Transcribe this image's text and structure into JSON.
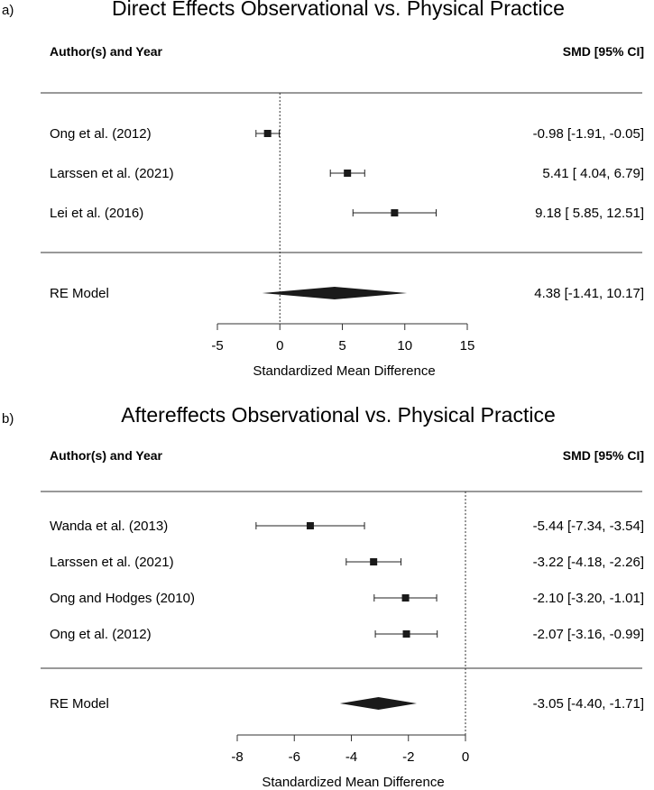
{
  "chart_data": [
    {
      "type": "forest",
      "panel_label": "a)",
      "title": "Direct Effects Observational vs. Physical Practice",
      "header_left": "Author(s) and Year",
      "header_right": "SMD [95% CI]",
      "xlabel": "Standardized Mean Difference",
      "xlim": [
        -5,
        15
      ],
      "ticks": [
        -5,
        0,
        5,
        10,
        15
      ],
      "tick_labels": [
        "-5",
        "0",
        "5",
        "10",
        "15"
      ],
      "reference_line": 0,
      "studies": [
        {
          "label": "Ong et al. (2012)",
          "est": -0.98,
          "lo": -1.91,
          "hi": -0.05,
          "ci_text": "-0.98 [-1.91, -0.05]"
        },
        {
          "label": "Larssen et al. (2021)",
          "est": 5.41,
          "lo": 4.04,
          "hi": 6.79,
          "ci_text": "5.41 [ 4.04,  6.79]"
        },
        {
          "label": "Lei et al. (2016)",
          "est": 9.18,
          "lo": 5.85,
          "hi": 12.51,
          "ci_text": "9.18 [ 5.85, 12.51]"
        }
      ],
      "summary": {
        "label": "RE Model",
        "est": 4.38,
        "lo": -1.41,
        "hi": 10.17,
        "ci_text": "4.38 [-1.41, 10.17]"
      }
    },
    {
      "type": "forest",
      "panel_label": "b)",
      "title": "Aftereffects Observational vs. Physical Practice",
      "header_left": "Author(s) and Year",
      "header_right": "SMD [95% CI]",
      "xlabel": "Standardized Mean Difference",
      "xlim": [
        -8,
        0
      ],
      "ticks": [
        -8,
        -6,
        -4,
        -2,
        0
      ],
      "tick_labels": [
        "-8",
        "-6",
        "-4",
        "-2",
        "0"
      ],
      "reference_line": 0,
      "studies": [
        {
          "label": "Wanda et al. (2013)",
          "est": -5.44,
          "lo": -7.34,
          "hi": -3.54,
          "ci_text": "-5.44 [-7.34, -3.54]"
        },
        {
          "label": "Larssen et al. (2021)",
          "est": -3.22,
          "lo": -4.18,
          "hi": -2.26,
          "ci_text": "-3.22 [-4.18, -2.26]"
        },
        {
          "label": "Ong and Hodges (2010)",
          "est": -2.1,
          "lo": -3.2,
          "hi": -1.01,
          "ci_text": "-2.10 [-3.20, -1.01]"
        },
        {
          "label": "Ong et al. (2012)",
          "est": -2.07,
          "lo": -3.16,
          "hi": -0.99,
          "ci_text": "-2.07 [-3.16, -0.99]"
        }
      ],
      "summary": {
        "label": "RE Model",
        "est": -3.05,
        "lo": -4.4,
        "hi": -1.71,
        "ci_text": "-3.05 [-4.40, -1.71]"
      }
    }
  ]
}
